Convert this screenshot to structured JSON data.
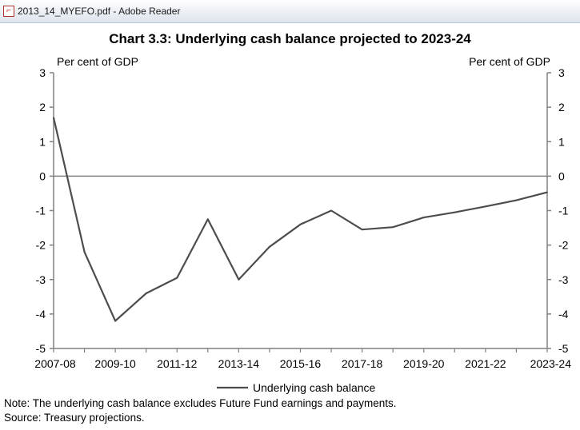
{
  "window": {
    "title": "2013_14_MYEFO.pdf - Adobe Reader",
    "icon": "pdf-document-icon"
  },
  "chart_data": {
    "type": "line",
    "title": "Chart 3.3: Underlying cash balance projected to 2023-24",
    "ylabel_left": "Per cent of GDP",
    "ylabel_right": "Per cent of GDP",
    "ylim": [
      -5,
      3
    ],
    "yticks": [
      "3",
      "2",
      "1",
      "0",
      "-1",
      "-2",
      "-3",
      "-4",
      "-5"
    ],
    "x_tick_labels": [
      "2007-08",
      "2009-10",
      "2011-12",
      "2013-14",
      "2015-16",
      "2017-18",
      "2019-20",
      "2021-22",
      "2023-24"
    ],
    "x": [
      "2007-08",
      "2008-09",
      "2009-10",
      "2010-11",
      "2011-12",
      "2012-13",
      "2013-14",
      "2014-15",
      "2015-16",
      "2016-17",
      "2017-18",
      "2018-19",
      "2019-20",
      "2020-21",
      "2021-22",
      "2022-23",
      "2023-24"
    ],
    "series": [
      {
        "name": "Underlying cash balance",
        "color": "#4d4d4d",
        "values": [
          1.7,
          -2.2,
          -4.2,
          -3.4,
          -2.95,
          -1.25,
          -3.0,
          -2.05,
          -1.4,
          -1.0,
          -1.55,
          -1.48,
          -1.2,
          -1.05,
          -0.88,
          -0.7,
          -0.47
        ]
      }
    ],
    "grid": false,
    "zero_line": true,
    "legend_position": "bottom-center"
  },
  "notes": {
    "note": "Note: The underlying cash balance excludes Future Fund earnings and payments.",
    "source": "Source: Treasury projections."
  }
}
